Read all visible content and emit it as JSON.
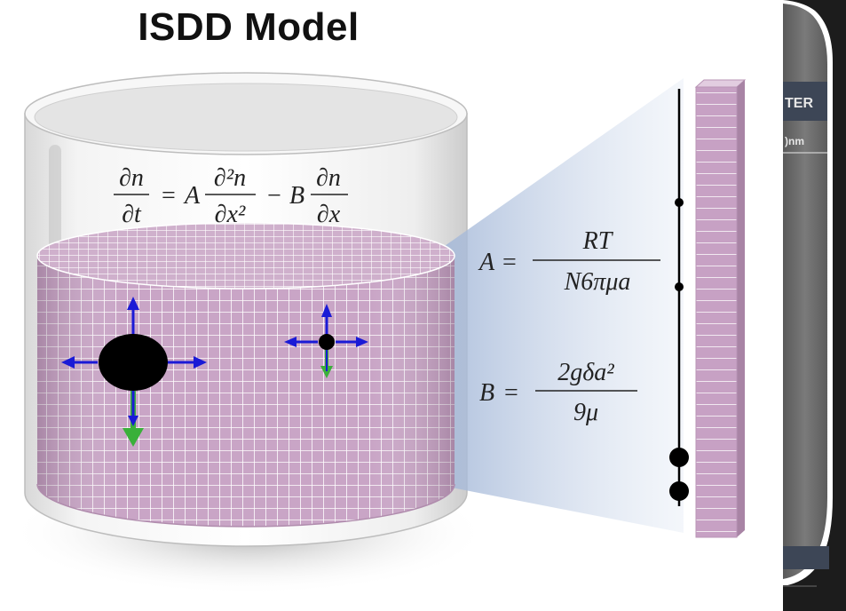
{
  "title": "ISDD Model",
  "equations": {
    "main": {
      "lhs_num": "∂n",
      "lhs_den": "∂t",
      "eq": "=",
      "coef_a": "A",
      "t1_num": "∂²n",
      "t1_den": "∂x²",
      "minus": "−",
      "coef_b": "B",
      "t2_num": "∂n",
      "t2_den": "∂x"
    },
    "a_def": {
      "lhs": "A",
      "eq": "=",
      "num": "RT",
      "den": "N6πμa"
    },
    "b_def": {
      "lhs": "B",
      "eq": "=",
      "num": "2gδa²",
      "den": "9μ"
    }
  },
  "device": {
    "label1": "TER",
    "label2": ")nm"
  },
  "colors": {
    "grid_fill": "#c9a5c6",
    "grid_line": "#ffffff",
    "horizontal_arrow": "#1a1ad6",
    "vertical_arrow": "#1a1ad6",
    "settling_arrow": "#3ab03a",
    "particle": "#000000",
    "device_frame": "#1c1c1c"
  },
  "icons": [
    "large-particle-icon",
    "small-particle-icon",
    "up-arrow-icon",
    "down-arrow-icon",
    "left-arrow-icon",
    "right-arrow-icon",
    "settling-arrow-icon"
  ]
}
